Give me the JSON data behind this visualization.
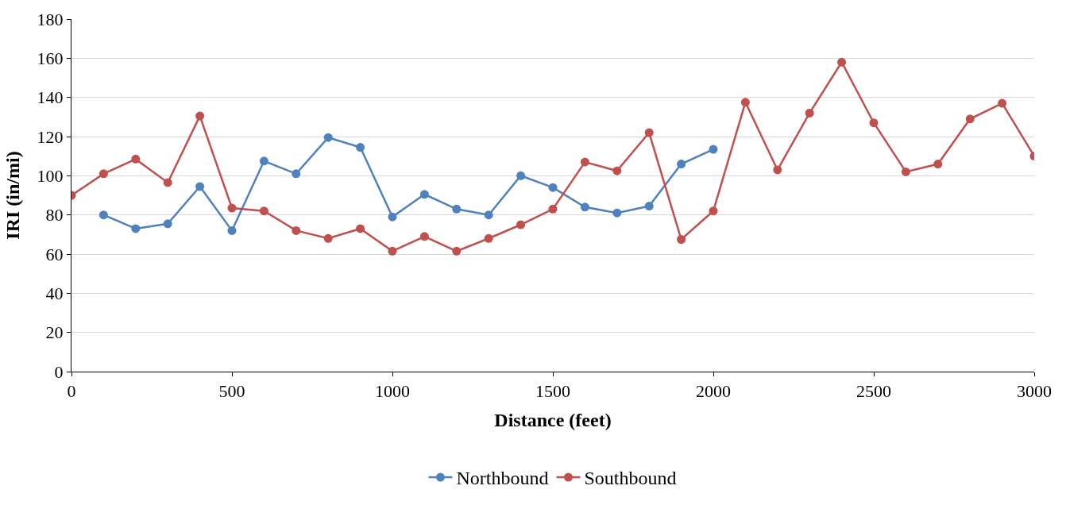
{
  "chart_data": {
    "type": "line",
    "xlabel": "Distance (feet)",
    "ylabel": "IRI (in/mi)",
    "xlim": [
      0,
      3000
    ],
    "xticks": [
      0,
      500,
      1000,
      1500,
      2000,
      2500,
      3000
    ],
    "ylim": [
      0,
      180
    ],
    "yticks": [
      0,
      20,
      40,
      60,
      80,
      100,
      120,
      140,
      160,
      180
    ],
    "grid": "y",
    "legend": "bottom",
    "marker": "circle",
    "line_style": "solid",
    "series": [
      {
        "name": "Northbound",
        "color": "#4f81bd",
        "x": [
          100,
          200,
          300,
          400,
          500,
          600,
          700,
          800,
          900,
          1000,
          1100,
          1200,
          1300,
          1400,
          1500,
          1600,
          1700,
          1800,
          1900,
          2000
        ],
        "values": [
          80,
          73,
          75.5,
          94.5,
          72,
          107.5,
          101,
          119.5,
          114.5,
          79,
          90.5,
          83,
          80,
          100,
          94,
          84,
          81,
          84.5,
          106,
          113.5
        ]
      },
      {
        "name": "Southbound",
        "color": "#c0504d",
        "x": [
          0,
          100,
          200,
          300,
          400,
          500,
          600,
          700,
          800,
          900,
          1000,
          1100,
          1200,
          1300,
          1400,
          1500,
          1600,
          1700,
          1800,
          1900,
          2000,
          2100,
          2200,
          2300,
          2400,
          2500,
          2600,
          2700,
          2800,
          2900,
          3000
        ],
        "values": [
          90,
          101,
          108.5,
          96.5,
          130.5,
          83.5,
          82,
          72,
          68,
          73,
          61.5,
          69,
          61.5,
          68,
          75,
          83,
          107,
          102.5,
          122,
          67.5,
          82,
          137.5,
          103,
          132,
          158,
          127,
          102,
          106,
          129,
          137,
          110
        ]
      }
    ]
  }
}
